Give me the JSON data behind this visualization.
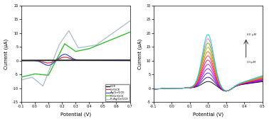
{
  "left": {
    "xlim": [
      -0.1,
      0.7
    ],
    "ylim": [
      -15,
      20
    ],
    "xlabel": "Potential (V)",
    "ylabel": "Current (μA)",
    "yticks": [
      -15,
      -10,
      -5,
      0,
      5,
      10,
      15,
      20
    ],
    "xticks": [
      -0.1,
      0.0,
      0.1,
      0.2,
      0.3,
      0.4,
      0.5,
      0.6,
      0.7
    ],
    "legend": [
      "GCE",
      "Gr/GCE",
      "Ag/Gr/GCE",
      "Pt/Gr/GCE",
      "Pt-Ag/Gr/GCE"
    ],
    "colors": [
      "#222222",
      "#cc3333",
      "#3355cc",
      "#33bb33",
      "#aabbcc"
    ]
  },
  "right": {
    "xlim": [
      -0.1,
      0.5
    ],
    "ylim": [
      -5,
      30
    ],
    "xlabel": "Potential (V)",
    "ylabel": "Current (μA)",
    "yticks": [
      -5,
      0,
      5,
      10,
      15,
      20,
      25,
      30
    ],
    "xticks": [
      -0.1,
      0.0,
      0.1,
      0.2,
      0.3,
      0.4,
      0.5
    ],
    "annotation_high": "60 μM",
    "annotation_low": "0.5μM",
    "n_curves": 12,
    "colors": [
      "#000000",
      "#3d0099",
      "#6600cc",
      "#9900ff",
      "#cc00ff",
      "#ff00cc",
      "#ff0066",
      "#ff3300",
      "#ff6600",
      "#ccaa00",
      "#66bb00",
      "#00cccc"
    ]
  }
}
